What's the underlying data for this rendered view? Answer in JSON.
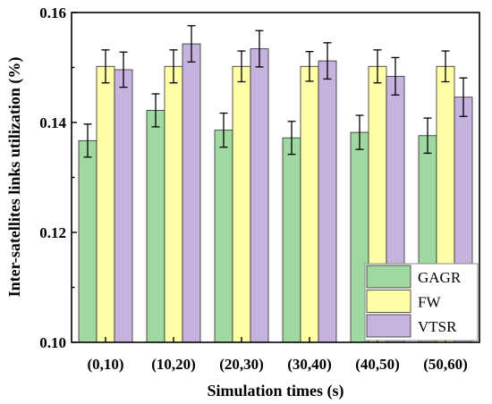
{
  "chart_data": {
    "type": "bar",
    "xlabel": "Simulation times (s)",
    "ylabel": "Inter-satellites links utilization (%)",
    "ylim": [
      0.1,
      0.16
    ],
    "yticks": [
      "0.10",
      "0.12",
      "0.14",
      "0.16"
    ],
    "ytick_values": [
      0.1,
      0.12,
      0.14,
      0.16
    ],
    "categories": [
      "(0,10)",
      "(10,20)",
      "(20,30)",
      "(30,40)",
      "(40,50)",
      "(50,60)"
    ],
    "series": [
      {
        "name": "GAGR",
        "color": "#9fd8a0",
        "values": [
          0.1367,
          0.1422,
          0.1386,
          0.1372,
          0.1382,
          0.1376
        ],
        "errors": [
          0.003,
          0.003,
          0.0031,
          0.003,
          0.0031,
          0.0032
        ]
      },
      {
        "name": "FW",
        "color": "#ffffa8",
        "values": [
          0.1502,
          0.1502,
          0.1502,
          0.1502,
          0.1502,
          0.1502
        ],
        "errors": [
          0.003,
          0.003,
          0.0028,
          0.0027,
          0.003,
          0.0028
        ]
      },
      {
        "name": "VTSR",
        "color": "#c5b3dd",
        "values": [
          0.1496,
          0.1543,
          0.1534,
          0.1512,
          0.1484,
          0.1446
        ],
        "errors": [
          0.0032,
          0.0033,
          0.0033,
          0.0033,
          0.0034,
          0.0035
        ]
      }
    ],
    "legend": {
      "position": "bottom-right"
    },
    "grid": false
  }
}
